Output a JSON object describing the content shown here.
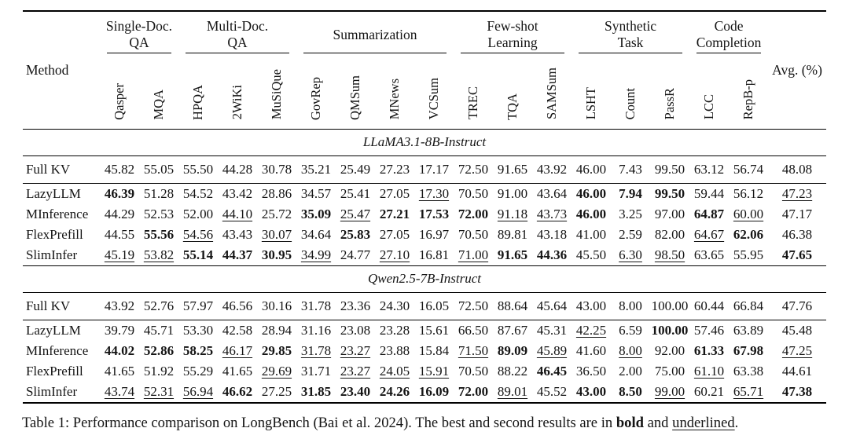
{
  "table": {
    "method_header": "Method",
    "avg_header": "Avg. (%)",
    "groups": [
      {
        "label": "Single-Doc.\nQA",
        "cols": [
          "Qasper",
          "MQA"
        ]
      },
      {
        "label": "Multi-Doc.\nQA",
        "cols": [
          "HPQA",
          "2WiKi",
          "MuSiQue"
        ]
      },
      {
        "label": "Summarization",
        "cols": [
          "GovRep",
          "QMSum",
          "MNews",
          "VCSum"
        ]
      },
      {
        "label": "Few-shot\nLearning",
        "cols": [
          "TREC",
          "TQA",
          "SAMSum"
        ]
      },
      {
        "label": "Synthetic\nTask",
        "cols": [
          "LSHT",
          "Count",
          "PassR"
        ]
      },
      {
        "label": "Code\nCompletion",
        "cols": [
          "LCC",
          "RepB-p"
        ]
      }
    ],
    "style_legend": {
      "p": "plain",
      "b": "bold (best)",
      "u": "underlined (second best)"
    },
    "sections": [
      {
        "title": "LLaMA3.1-8B-Instruct",
        "rows": [
          {
            "method": "Full KV",
            "cells": [
              [
                "45.82",
                "p"
              ],
              [
                "55.05",
                "p"
              ],
              [
                "55.50",
                "p"
              ],
              [
                "44.28",
                "p"
              ],
              [
                "30.78",
                "p"
              ],
              [
                "35.21",
                "p"
              ],
              [
                "25.49",
                "p"
              ],
              [
                "27.23",
                "p"
              ],
              [
                "17.17",
                "p"
              ],
              [
                "72.50",
                "p"
              ],
              [
                "91.65",
                "p"
              ],
              [
                "43.92",
                "p"
              ],
              [
                "46.00",
                "p"
              ],
              [
                "7.43",
                "p"
              ],
              [
                "99.50",
                "p"
              ],
              [
                "63.12",
                "p"
              ],
              [
                "56.74",
                "p"
              ],
              [
                "48.08",
                "p"
              ]
            ]
          },
          {
            "method": "LazyLLM",
            "cells": [
              [
                "46.39",
                "b"
              ],
              [
                "51.28",
                "p"
              ],
              [
                "54.52",
                "p"
              ],
              [
                "43.42",
                "p"
              ],
              [
                "28.86",
                "p"
              ],
              [
                "34.57",
                "p"
              ],
              [
                "25.41",
                "p"
              ],
              [
                "27.05",
                "p"
              ],
              [
                "17.30",
                "u"
              ],
              [
                "70.50",
                "p"
              ],
              [
                "91.00",
                "p"
              ],
              [
                "43.64",
                "p"
              ],
              [
                "46.00",
                "b"
              ],
              [
                "7.94",
                "b"
              ],
              [
                "99.50",
                "b"
              ],
              [
                "59.44",
                "p"
              ],
              [
                "56.12",
                "p"
              ],
              [
                "47.23",
                "u"
              ]
            ]
          },
          {
            "method": "MInference",
            "cells": [
              [
                "44.29",
                "p"
              ],
              [
                "52.53",
                "p"
              ],
              [
                "52.00",
                "p"
              ],
              [
                "44.10",
                "u"
              ],
              [
                "25.72",
                "p"
              ],
              [
                "35.09",
                "b"
              ],
              [
                "25.47",
                "u"
              ],
              [
                "27.21",
                "b"
              ],
              [
                "17.53",
                "b"
              ],
              [
                "72.00",
                "b"
              ],
              [
                "91.18",
                "u"
              ],
              [
                "43.73",
                "u"
              ],
              [
                "46.00",
                "b"
              ],
              [
                "3.25",
                "p"
              ],
              [
                "97.00",
                "p"
              ],
              [
                "64.87",
                "b"
              ],
              [
                "60.00",
                "u"
              ],
              [
                "47.17",
                "p"
              ]
            ]
          },
          {
            "method": "FlexPrefill",
            "cells": [
              [
                "44.55",
                "p"
              ],
              [
                "55.56",
                "b"
              ],
              [
                "54.56",
                "u"
              ],
              [
                "43.43",
                "p"
              ],
              [
                "30.07",
                "u"
              ],
              [
                "34.64",
                "p"
              ],
              [
                "25.83",
                "b"
              ],
              [
                "27.05",
                "p"
              ],
              [
                "16.97",
                "p"
              ],
              [
                "70.50",
                "p"
              ],
              [
                "89.81",
                "p"
              ],
              [
                "43.18",
                "p"
              ],
              [
                "41.00",
                "p"
              ],
              [
                "2.59",
                "p"
              ],
              [
                "82.00",
                "p"
              ],
              [
                "64.67",
                "u"
              ],
              [
                "62.06",
                "b"
              ],
              [
                "46.38",
                "p"
              ]
            ]
          },
          {
            "method": "SlimInfer",
            "cells": [
              [
                "45.19",
                "u"
              ],
              [
                "53.82",
                "u"
              ],
              [
                "55.14",
                "b"
              ],
              [
                "44.37",
                "b"
              ],
              [
                "30.95",
                "b"
              ],
              [
                "34.99",
                "u"
              ],
              [
                "24.77",
                "p"
              ],
              [
                "27.10",
                "u"
              ],
              [
                "16.81",
                "p"
              ],
              [
                "71.00",
                "u"
              ],
              [
                "91.65",
                "b"
              ],
              [
                "44.36",
                "b"
              ],
              [
                "45.50",
                "p"
              ],
              [
                "6.30",
                "u"
              ],
              [
                "98.50",
                "u"
              ],
              [
                "63.65",
                "p"
              ],
              [
                "55.95",
                "p"
              ],
              [
                "47.65",
                "b"
              ]
            ]
          }
        ]
      },
      {
        "title": "Qwen2.5-7B-Instruct",
        "rows": [
          {
            "method": "Full KV",
            "cells": [
              [
                "43.92",
                "p"
              ],
              [
                "52.76",
                "p"
              ],
              [
                "57.97",
                "p"
              ],
              [
                "46.56",
                "p"
              ],
              [
                "30.16",
                "p"
              ],
              [
                "31.78",
                "p"
              ],
              [
                "23.36",
                "p"
              ],
              [
                "24.30",
                "p"
              ],
              [
                "16.05",
                "p"
              ],
              [
                "72.50",
                "p"
              ],
              [
                "88.64",
                "p"
              ],
              [
                "45.64",
                "p"
              ],
              [
                "43.00",
                "p"
              ],
              [
                "8.00",
                "p"
              ],
              [
                "100.00",
                "p"
              ],
              [
                "60.44",
                "p"
              ],
              [
                "66.84",
                "p"
              ],
              [
                "47.76",
                "p"
              ]
            ]
          },
          {
            "method": "LazyLLM",
            "cells": [
              [
                "39.79",
                "p"
              ],
              [
                "45.71",
                "p"
              ],
              [
                "53.30",
                "p"
              ],
              [
                "42.58",
                "p"
              ],
              [
                "28.94",
                "p"
              ],
              [
                "31.16",
                "p"
              ],
              [
                "23.08",
                "p"
              ],
              [
                "23.28",
                "p"
              ],
              [
                "15.61",
                "p"
              ],
              [
                "66.50",
                "p"
              ],
              [
                "87.67",
                "p"
              ],
              [
                "45.31",
                "p"
              ],
              [
                "42.25",
                "u"
              ],
              [
                "6.59",
                "p"
              ],
              [
                "100.00",
                "b"
              ],
              [
                "57.46",
                "p"
              ],
              [
                "63.89",
                "p"
              ],
              [
                "45.48",
                "p"
              ]
            ]
          },
          {
            "method": "MInference",
            "cells": [
              [
                "44.02",
                "b"
              ],
              [
                "52.86",
                "b"
              ],
              [
                "58.25",
                "b"
              ],
              [
                "46.17",
                "u"
              ],
              [
                "29.85",
                "b"
              ],
              [
                "31.78",
                "u"
              ],
              [
                "23.27",
                "u"
              ],
              [
                "23.88",
                "p"
              ],
              [
                "15.84",
                "p"
              ],
              [
                "71.50",
                "u"
              ],
              [
                "89.09",
                "b"
              ],
              [
                "45.89",
                "u"
              ],
              [
                "41.60",
                "p"
              ],
              [
                "8.00",
                "u"
              ],
              [
                "92.00",
                "p"
              ],
              [
                "61.33",
                "b"
              ],
              [
                "67.98",
                "b"
              ],
              [
                "47.25",
                "u"
              ]
            ]
          },
          {
            "method": "FlexPrefill",
            "cells": [
              [
                "41.65",
                "p"
              ],
              [
                "51.92",
                "p"
              ],
              [
                "55.29",
                "p"
              ],
              [
                "41.65",
                "p"
              ],
              [
                "29.69",
                "u"
              ],
              [
                "31.71",
                "p"
              ],
              [
                "23.27",
                "u"
              ],
              [
                "24.05",
                "u"
              ],
              [
                "15.91",
                "u"
              ],
              [
                "70.50",
                "p"
              ],
              [
                "88.22",
                "p"
              ],
              [
                "46.45",
                "b"
              ],
              [
                "36.50",
                "p"
              ],
              [
                "2.00",
                "p"
              ],
              [
                "75.00",
                "p"
              ],
              [
                "61.10",
                "u"
              ],
              [
                "63.38",
                "p"
              ],
              [
                "44.61",
                "p"
              ]
            ]
          },
          {
            "method": "SlimInfer",
            "cells": [
              [
                "43.74",
                "u"
              ],
              [
                "52.31",
                "u"
              ],
              [
                "56.94",
                "u"
              ],
              [
                "46.62",
                "b"
              ],
              [
                "27.25",
                "p"
              ],
              [
                "31.85",
                "b"
              ],
              [
                "23.40",
                "b"
              ],
              [
                "24.26",
                "b"
              ],
              [
                "16.09",
                "b"
              ],
              [
                "72.00",
                "b"
              ],
              [
                "89.01",
                "u"
              ],
              [
                "45.52",
                "p"
              ],
              [
                "43.00",
                "b"
              ],
              [
                "8.50",
                "b"
              ],
              [
                "99.00",
                "u"
              ],
              [
                "60.21",
                "p"
              ],
              [
                "65.71",
                "u"
              ],
              [
                "47.38",
                "b"
              ]
            ]
          }
        ]
      }
    ]
  },
  "caption": {
    "prefix": "Table 1: Performance comparison on LongBench (Bai et al. 2024). The best and second results are in ",
    "bold_word": "bold",
    "mid": " and ",
    "underlined_word": "underlined",
    "suffix": "."
  }
}
